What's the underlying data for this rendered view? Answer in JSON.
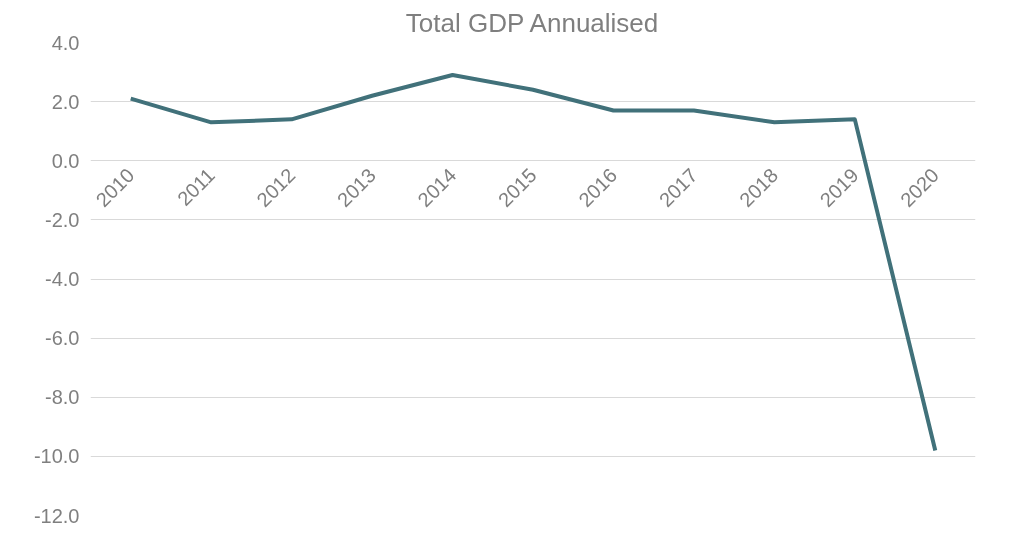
{
  "chart_data": {
    "type": "line",
    "title": "Total GDP Annualised",
    "categories": [
      "2010",
      "2011",
      "2012",
      "2013",
      "2014",
      "2015",
      "2016",
      "2017",
      "2018",
      "2019",
      "2020"
    ],
    "series": [
      {
        "color": "#41717a",
        "values": [
          2.1,
          1.3,
          1.4,
          2.2,
          2.9,
          2.4,
          1.7,
          1.7,
          1.3,
          1.4,
          -9.8
        ]
      }
    ],
    "ylim": [
      -12,
      4
    ],
    "yticks": [
      {
        "value": -12,
        "label": "-12.0"
      },
      {
        "value": -10,
        "label": "-10.0"
      },
      {
        "value": -8,
        "label": "-8.0"
      },
      {
        "value": -6,
        "label": "-6.0"
      },
      {
        "value": -4,
        "label": "-4.0"
      },
      {
        "value": -2,
        "label": "-2.0"
      },
      {
        "value": 0,
        "label": "0.0"
      },
      {
        "value": 2,
        "label": "2.0"
      },
      {
        "value": 4,
        "label": "4.0"
      }
    ],
    "grid": "y",
    "marker": "none",
    "line_style": "solid"
  }
}
